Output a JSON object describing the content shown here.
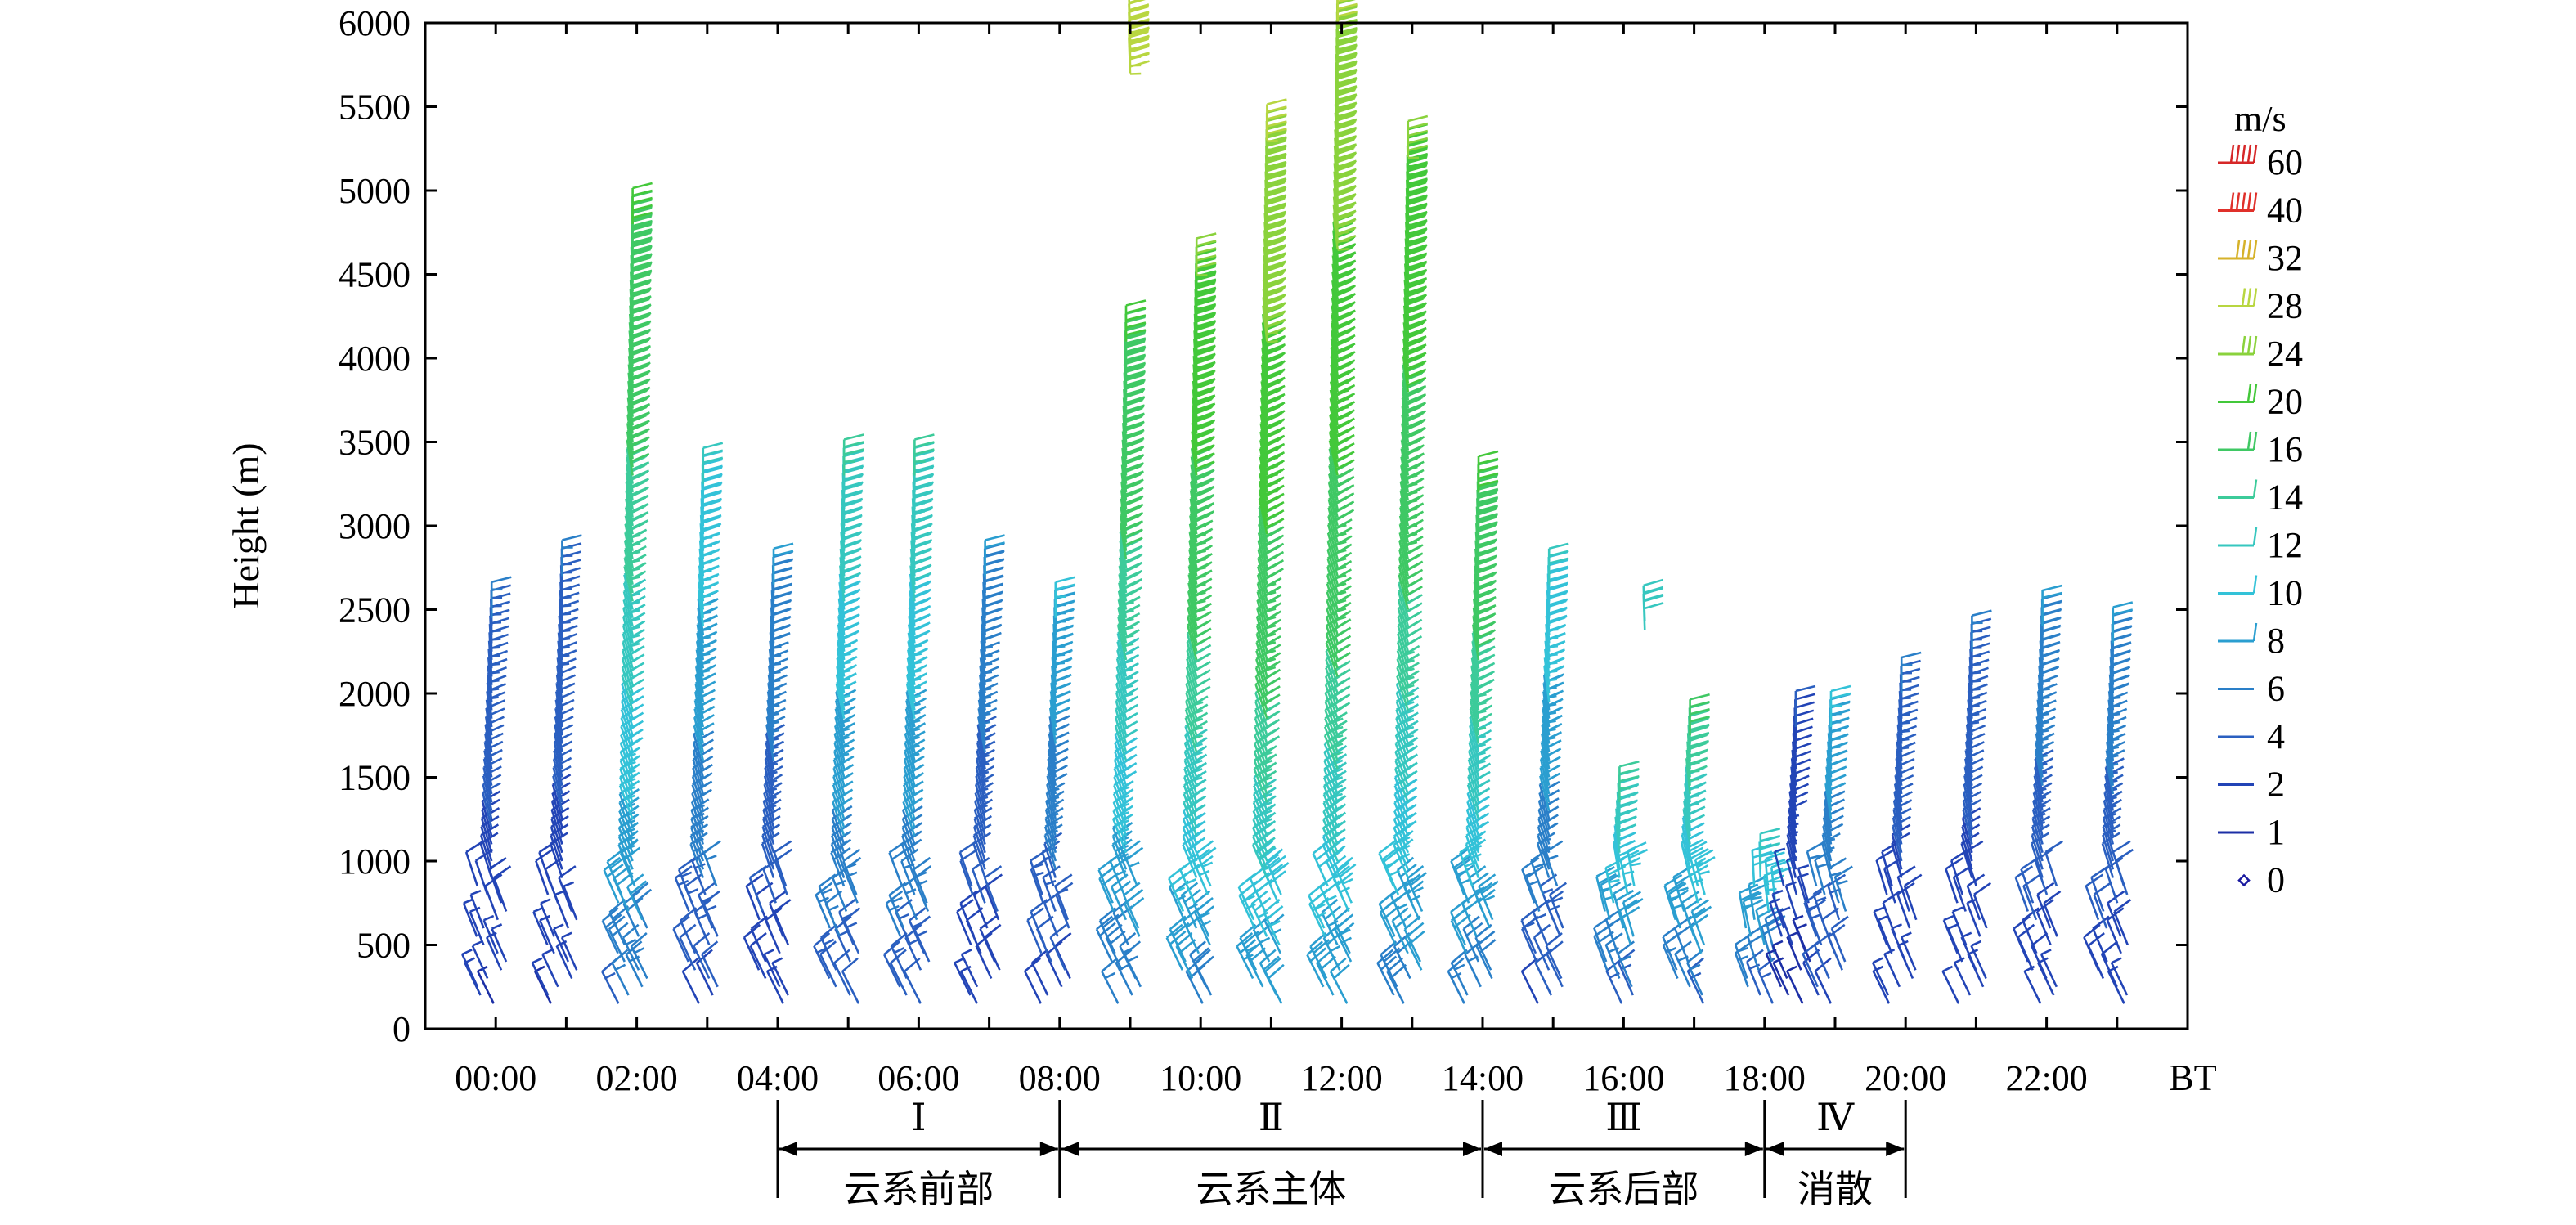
{
  "chart_data": {
    "type": "wind-barb time-height profile",
    "ylabel": "Height (m)",
    "ylim": [
      0,
      6000
    ],
    "y_ticks": [
      "0",
      "500",
      "1000",
      "1500",
      "2000",
      "2500",
      "3000",
      "3500",
      "4000",
      "4500",
      "5000",
      "5500",
      "6000"
    ],
    "x_range_hours": [
      -1,
      24
    ],
    "x_ticks": [
      "00:00",
      "02:00",
      "04:00",
      "06:00",
      "08:00",
      "10:00",
      "12:00",
      "14:00",
      "16:00",
      "18:00",
      "20:00",
      "22:00"
    ],
    "x_unit": "BT",
    "legend_title": "m/s",
    "legend": [
      {
        "label": "60",
        "color": "#d62728"
      },
      {
        "label": "40",
        "color": "#e0302a"
      },
      {
        "label": "32",
        "color": "#d6b22a"
      },
      {
        "label": "28",
        "color": "#b8d640"
      },
      {
        "label": "24",
        "color": "#8ad23c"
      },
      {
        "label": "20",
        "color": "#43c83a"
      },
      {
        "label": "16",
        "color": "#3fc864"
      },
      {
        "label": "14",
        "color": "#3ccb9a"
      },
      {
        "label": "12",
        "color": "#36c7bf"
      },
      {
        "label": "10",
        "color": "#33c2d8"
      },
      {
        "label": "8",
        "color": "#2a9ed0"
      },
      {
        "label": "6",
        "color": "#2a7fc8"
      },
      {
        "label": "4",
        "color": "#2a5fc0"
      },
      {
        "label": "2",
        "color": "#2244b6"
      },
      {
        "label": "1",
        "color": "#1c2fa6"
      },
      {
        "label": "0",
        "color": "#1a1aa0"
      }
    ],
    "profiles": [
      {
        "t": 0,
        "top": 2450,
        "peak": 6
      },
      {
        "t": 1,
        "top": 2700,
        "peak": 6
      },
      {
        "t": 2,
        "top": 4800,
        "peak": 20
      },
      {
        "t": 3,
        "top": 3250,
        "peak": 12
      },
      {
        "t": 4,
        "top": 2650,
        "peak": 8
      },
      {
        "t": 5,
        "top": 3300,
        "peak": 14
      },
      {
        "t": 6,
        "top": 3300,
        "peak": 14
      },
      {
        "t": 7,
        "top": 2700,
        "peak": 8
      },
      {
        "t": 8,
        "top": 2450,
        "peak": 10
      },
      {
        "t": 9,
        "top": 4100,
        "peak": 20
      },
      {
        "t": 10,
        "top": 4500,
        "peak": 24
      },
      {
        "t": 11,
        "top": 5300,
        "peak": 28
      },
      {
        "t": 12,
        "top": 6000,
        "peak": 28
      },
      {
        "t": 13,
        "top": 5200,
        "peak": 24
      },
      {
        "t": 14,
        "top": 3200,
        "peak": 20
      },
      {
        "t": 15,
        "top": 2650,
        "peak": 12
      },
      {
        "t": 16,
        "top": 1350,
        "peak": 14
      },
      {
        "t": 17,
        "top": 1750,
        "peak": 16
      },
      {
        "t": 18,
        "top": 950,
        "peak": 12
      },
      {
        "t": 18.5,
        "top": 1800,
        "peak": 4
      },
      {
        "t": 19,
        "top": 1800,
        "peak": 10
      },
      {
        "t": 20,
        "top": 2000,
        "peak": 6
      },
      {
        "t": 21,
        "top": 2250,
        "peak": 6
      },
      {
        "t": 22,
        "top": 2400,
        "peak": 8
      },
      {
        "t": 23,
        "top": 2300,
        "peak": 8
      }
    ],
    "isolated_segments": [
      {
        "t": 9,
        "bottom": 5700,
        "top": 5950,
        "peak": 28
      },
      {
        "t": 16.3,
        "bottom": 2380,
        "top": 2430,
        "peak": 12
      }
    ],
    "stages": [
      {
        "label": "Ⅰ",
        "name": "云系前部",
        "start": 4,
        "end": 8
      },
      {
        "label": "Ⅱ",
        "name": "云系主体",
        "start": 8,
        "end": 14
      },
      {
        "label": "Ⅲ",
        "name": "云系后部",
        "start": 14,
        "end": 18
      },
      {
        "label": "Ⅳ",
        "name": "消散",
        "start": 18,
        "end": 20
      }
    ]
  }
}
